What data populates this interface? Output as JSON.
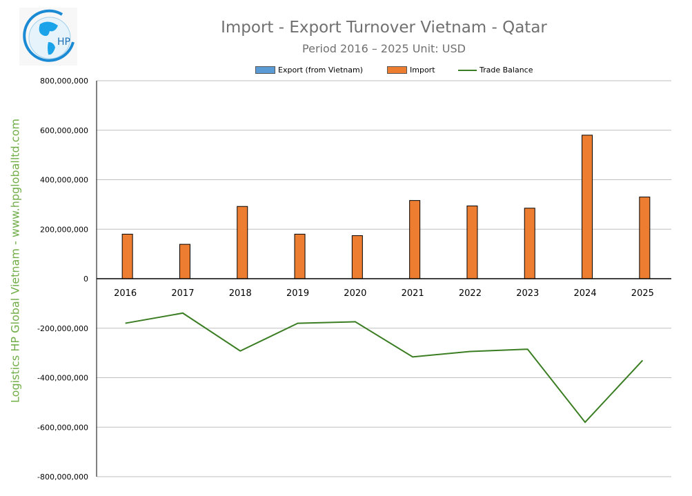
{
  "title": "Import - Export Turnover Vietnam - Qatar",
  "subtitle": "Period 2016 – 2025  Unit: USD",
  "side_text": "Logistics HP Global Vietnam - www.hpgloballtd.com",
  "logo_text": "HP",
  "chart_data": {
    "type": "bar",
    "title": "Import - Export Turnover Vietnam - Qatar",
    "subtitle": "Period 2016 – 2025  Unit: USD",
    "categories": [
      "2016",
      "2017",
      "2018",
      "2019",
      "2020",
      "2021",
      "2022",
      "2023",
      "2024",
      "2025"
    ],
    "series": [
      {
        "name": "Export (from Vietnam)",
        "type": "bar",
        "color": "#5b9bd5",
        "values": [
          0,
          0,
          0,
          0,
          0,
          0,
          0,
          0,
          0,
          0
        ]
      },
      {
        "name": "Import",
        "type": "bar",
        "color": "#ed7d31",
        "values": [
          180000000,
          139000000,
          292000000,
          180000000,
          174000000,
          316000000,
          294000000,
          285000000,
          580000000,
          330000000
        ]
      },
      {
        "name": "Trade Balance",
        "type": "line",
        "color": "#3a7d22",
        "values": [
          -180000000,
          -139000000,
          -292000000,
          -180000000,
          -174000000,
          -316000000,
          -294000000,
          -285000000,
          -580000000,
          -330000000
        ]
      }
    ],
    "ylim": [
      -800000000,
      800000000
    ],
    "yticks": [
      "800,000,000",
      "600,000,000",
      "400,000,000",
      "200,000,000",
      "0",
      "-200,000,000",
      "-400,000,000",
      "-600,000,000",
      "-800,000,000"
    ],
    "ytick_values": [
      800000000,
      600000000,
      400000000,
      200000000,
      0,
      -200000000,
      -400000000,
      -600000000,
      -800000000
    ],
    "grid": true,
    "legend": "top"
  }
}
